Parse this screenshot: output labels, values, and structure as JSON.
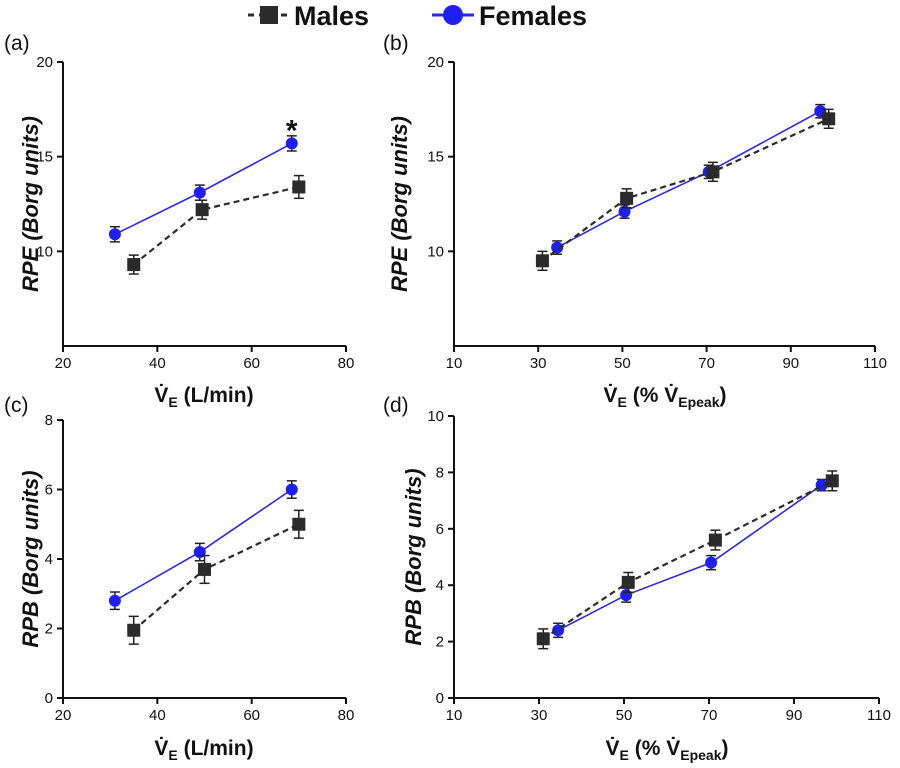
{
  "legend": {
    "males_label": "Males",
    "females_label": "Females"
  },
  "colors": {
    "males": "#2b2b2b",
    "females": "#1f1ff0",
    "females_line": "#2a2ae0"
  },
  "chart_data": [
    {
      "type": "line",
      "panel_label": "(a)",
      "title": "",
      "xlabel": {
        "main": "V̇",
        "sub": "E",
        "rest": " (L/min)"
      },
      "ylabel": "RPE (Borg units)",
      "xlim": [
        20,
        80
      ],
      "ylim": [
        5,
        20
      ],
      "xticks": [
        20,
        40,
        60,
        80
      ],
      "yticks": [
        10,
        15,
        20
      ],
      "series": [
        {
          "name": "Males",
          "x": [
            35,
            49.5,
            70
          ],
          "y": [
            9.3,
            12.2,
            13.4
          ],
          "err": [
            0.5,
            0.5,
            0.6
          ]
        },
        {
          "name": "Females",
          "x": [
            31,
            49,
            68.5
          ],
          "y": [
            10.9,
            13.1,
            15.7
          ],
          "err": [
            0.4,
            0.4,
            0.4
          ]
        }
      ],
      "annotations": [
        {
          "text": "*",
          "x": 68.5,
          "y": 16.7
        }
      ]
    },
    {
      "type": "line",
      "panel_label": "(b)",
      "title": "",
      "xlabel": {
        "main": "V̇",
        "sub": "E",
        "rest": " (% ",
        "main2": "V̇",
        "sub2": "Epeak",
        "rest2": ")"
      },
      "ylabel": "RPE (Borg units)",
      "xlim": [
        10,
        110
      ],
      "ylim": [
        5,
        20
      ],
      "xticks": [
        10,
        30,
        50,
        70,
        90,
        110
      ],
      "yticks": [
        10,
        15,
        20
      ],
      "series": [
        {
          "name": "Males",
          "x": [
            31,
            51,
            71.5,
            99
          ],
          "y": [
            9.5,
            12.8,
            14.2,
            17.0
          ],
          "err": [
            0.5,
            0.5,
            0.5,
            0.5
          ]
        },
        {
          "name": "Females",
          "x": [
            34.5,
            50.5,
            70.5,
            97
          ],
          "y": [
            10.2,
            12.1,
            14.2,
            17.4
          ],
          "err": [
            0.35,
            0.35,
            0.35,
            0.35
          ]
        }
      ],
      "annotations": []
    },
    {
      "type": "line",
      "panel_label": "(c)",
      "title": "",
      "xlabel": {
        "main": "V̇",
        "sub": "E",
        "rest": " (L/min)"
      },
      "ylabel": "RPB (Borg units)",
      "xlim": [
        20,
        80
      ],
      "ylim": [
        0,
        8
      ],
      "xticks": [
        20,
        40,
        60,
        80
      ],
      "yticks": [
        0,
        2,
        4,
        6,
        8
      ],
      "series": [
        {
          "name": "Males",
          "x": [
            35,
            50,
            70
          ],
          "y": [
            1.95,
            3.7,
            5.0
          ],
          "err": [
            0.4,
            0.4,
            0.4
          ]
        },
        {
          "name": "Females",
          "x": [
            31,
            49,
            68.5
          ],
          "y": [
            2.8,
            4.2,
            6.0
          ],
          "err": [
            0.25,
            0.25,
            0.25
          ]
        }
      ],
      "annotations": []
    },
    {
      "type": "line",
      "panel_label": "(d)",
      "title": "",
      "xlabel": {
        "main": "V̇",
        "sub": "E",
        "rest": " (% ",
        "main2": "V̇",
        "sub2": "Epeak",
        "rest2": ")"
      },
      "ylabel": "RPB (Borg units)",
      "xlim": [
        10,
        110
      ],
      "ylim": [
        0,
        10
      ],
      "xticks": [
        10,
        30,
        50,
        70,
        90,
        110
      ],
      "yticks": [
        0,
        2,
        4,
        6,
        8,
        10
      ],
      "series": [
        {
          "name": "Males",
          "x": [
            31,
            51,
            71.5,
            99
          ],
          "y": [
            2.1,
            4.1,
            5.6,
            7.7
          ],
          "err": [
            0.35,
            0.35,
            0.35,
            0.35
          ]
        },
        {
          "name": "Females",
          "x": [
            34.5,
            50.5,
            70.5,
            96.5
          ],
          "y": [
            2.4,
            3.65,
            4.8,
            7.55
          ],
          "err": [
            0.25,
            0.25,
            0.25,
            0.2
          ]
        }
      ],
      "annotations": []
    }
  ]
}
